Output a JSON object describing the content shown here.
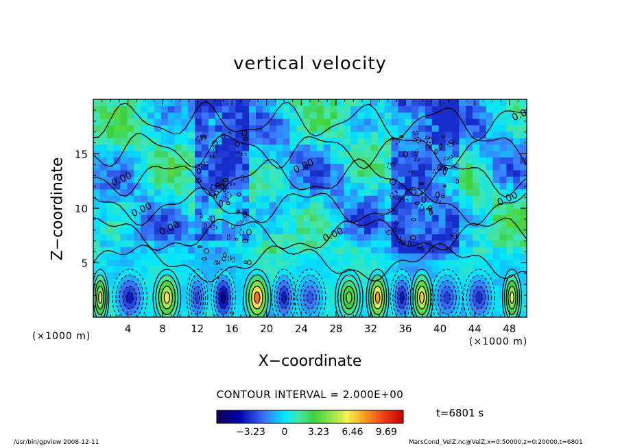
{
  "chart_data": {
    "type": "heatmap",
    "title": "vertical velocity",
    "xlabel": "X−coordinate",
    "ylabel": "Z−coordinate",
    "x_unit_label": "(×1000 m)",
    "xlim": [
      0,
      50
    ],
    "ylim": [
      0,
      20
    ],
    "x_ticks": [
      "4",
      "8",
      "12",
      "16",
      "20",
      "24",
      "28",
      "32",
      "36",
      "40",
      "44",
      "48"
    ],
    "x_tick_values": [
      4,
      8,
      12,
      16,
      20,
      24,
      28,
      32,
      36,
      40,
      44,
      48
    ],
    "y_ticks": [
      "5",
      "10",
      "15"
    ],
    "y_tick_values": [
      5,
      10,
      15
    ],
    "contour_interval": "CONTOUR INTERVAL = 2.000E+00",
    "contour_labels": [
      "0.00",
      "0.00",
      "0.00",
      "0.00",
      "0.00",
      "0.00",
      "0.00"
    ],
    "time": "t=6801 s",
    "colorbar": {
      "ticks": [
        "−3.23",
        "0",
        "3.23",
        "6.46",
        "9.69"
      ],
      "tick_values": [
        -3.23,
        0,
        3.23,
        6.46,
        9.69
      ],
      "range": [
        -6.46,
        11.3
      ]
    },
    "lower_cells": [
      {
        "x": 0.8,
        "w": 1.0,
        "v": 6.5
      },
      {
        "x": 4.2,
        "w": 2.0,
        "v": -4.5
      },
      {
        "x": 8.5,
        "w": 1.6,
        "v": 7.5
      },
      {
        "x": 12.0,
        "w": 1.2,
        "v": -3.5
      },
      {
        "x": 15.0,
        "w": 1.4,
        "v": -6.0
      },
      {
        "x": 18.9,
        "w": 1.6,
        "v": 10.0
      },
      {
        "x": 22.0,
        "w": 1.4,
        "v": -4.5
      },
      {
        "x": 25.0,
        "w": 1.8,
        "v": -3.0
      },
      {
        "x": 29.5,
        "w": 1.6,
        "v": 4.5
      },
      {
        "x": 32.8,
        "w": 1.3,
        "v": 9.0
      },
      {
        "x": 35.6,
        "w": 1.3,
        "v": -4.5
      },
      {
        "x": 37.9,
        "w": 1.3,
        "v": 8.0
      },
      {
        "x": 40.8,
        "w": 1.8,
        "v": -3.5
      },
      {
        "x": 44.5,
        "w": 1.8,
        "v": -4.0
      },
      {
        "x": 48.3,
        "w": 1.1,
        "v": 7.0
      }
    ]
  },
  "footer": {
    "left": "/usr/bin/gpview   2008-12-11",
    "right": "MarsCond_VelZ.nc@VelZ,x=0:50000,z=0:20000,t=6801"
  }
}
